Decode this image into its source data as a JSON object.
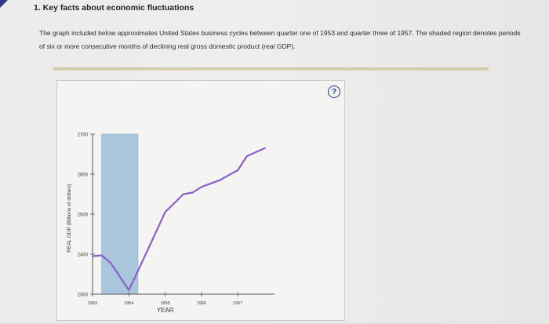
{
  "question": {
    "title": "1. Key facts about economic fluctuations",
    "text": "The graph included below approximates United States business cycles between quarter one of 1953 and quarter three of 1957. The shaded region denotes periods of six or more consecutive months of declining real gross domestic product (real GDP).",
    "help_label": "?"
  },
  "chart_data": {
    "type": "line",
    "xlabel": "YEAR",
    "ylabel": "REAL GDP (Billions of dollars)",
    "ylim": [
      2300,
      2700
    ],
    "yticks": [
      2300,
      2400,
      2500,
      2600,
      2700
    ],
    "xticks": [
      {
        "label": "1953",
        "x": 1953
      },
      {
        "label": "1954",
        "x": 1954
      },
      {
        "label": "1955",
        "x": 1955
      },
      {
        "label": "1956",
        "x": 1956
      },
      {
        "label": "1957",
        "x": 1957
      }
    ],
    "xlim": [
      1953,
      1957.75
    ],
    "series": [
      {
        "color": "#8a60c8",
        "points": [
          {
            "x": 1953.0,
            "y": 2395
          },
          {
            "x": 1953.25,
            "y": 2397
          },
          {
            "x": 1953.5,
            "y": 2378
          },
          {
            "x": 1954.0,
            "y": 2310
          },
          {
            "x": 1954.25,
            "y": 2358
          },
          {
            "x": 1955.0,
            "y": 2505
          },
          {
            "x": 1955.5,
            "y": 2550
          },
          {
            "x": 1955.75,
            "y": 2554
          },
          {
            "x": 1956.0,
            "y": 2568
          },
          {
            "x": 1956.5,
            "y": 2585
          },
          {
            "x": 1957.0,
            "y": 2610
          },
          {
            "x": 1957.25,
            "y": 2645
          },
          {
            "x": 1957.75,
            "y": 2665
          }
        ]
      }
    ],
    "shaded_regions": [
      {
        "x_start": 1953.25,
        "x_end": 1954.25,
        "color": "#a9c6dc"
      }
    ]
  }
}
